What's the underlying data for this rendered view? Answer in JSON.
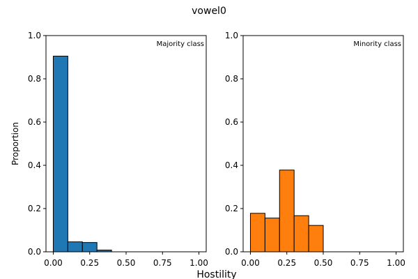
{
  "figure": {
    "suptitle": "vowel0",
    "supxlabel": "Hostility",
    "bar_edge_color": "#000000",
    "background": "#ffffff"
  },
  "chart_data": [
    {
      "type": "bar",
      "annotation": "Majority class",
      "ylabel": "Proportion",
      "xlabel": "",
      "color": "#1f77b4",
      "bin_width": 0.1,
      "bin_starts": [
        0.0,
        0.1,
        0.2,
        0.3
      ],
      "values": [
        0.905,
        0.046,
        0.043,
        0.008
      ],
      "xlim": [
        -0.05,
        1.05
      ],
      "ylim": [
        0,
        1.0
      ],
      "xticks": [
        0.0,
        0.25,
        0.5,
        0.75,
        1.0
      ],
      "xtick_labels": [
        "0.00",
        "0.25",
        "0.50",
        "0.75",
        "1.00"
      ],
      "yticks": [
        0.0,
        0.2,
        0.4,
        0.6,
        0.8,
        1.0
      ],
      "ytick_labels": [
        "0.0",
        "0.2",
        "0.4",
        "0.6",
        "0.8",
        "1.0"
      ],
      "grid": false
    },
    {
      "type": "bar",
      "annotation": "Minority class",
      "ylabel": "",
      "xlabel": "",
      "color": "#ff7f0e",
      "bin_width": 0.1,
      "bin_starts": [
        0.0,
        0.1,
        0.2,
        0.3,
        0.4
      ],
      "values": [
        0.178,
        0.156,
        0.378,
        0.167,
        0.122
      ],
      "xlim": [
        -0.05,
        1.05
      ],
      "ylim": [
        0,
        1.0
      ],
      "xticks": [
        0.0,
        0.25,
        0.5,
        0.75,
        1.0
      ],
      "xtick_labels": [
        "0.00",
        "0.25",
        "0.50",
        "0.75",
        "1.00"
      ],
      "yticks": [
        0.0,
        0.2,
        0.4,
        0.6,
        0.8,
        1.0
      ],
      "ytick_labels": [
        "0.0",
        "0.2",
        "0.4",
        "0.6",
        "0.8",
        "1.0"
      ],
      "grid": false
    }
  ]
}
